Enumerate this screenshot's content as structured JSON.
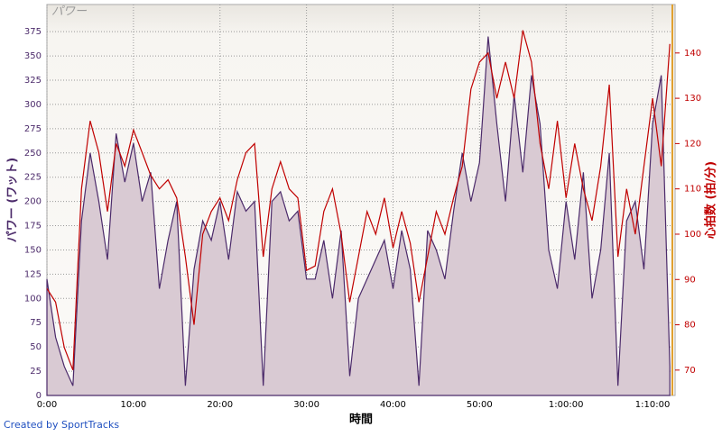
{
  "chart_data": {
    "type": "line",
    "title": "パワー",
    "xlabel": "時間",
    "ylabel": "パワー (ワット)",
    "y2label": "心拍数 (拍/分)",
    "credit": "Created by SportTracks",
    "x": [
      0,
      1,
      2,
      3,
      4,
      5,
      6,
      7,
      8,
      9,
      10,
      11,
      12,
      13,
      14,
      15,
      16,
      17,
      18,
      19,
      20,
      21,
      22,
      23,
      24,
      25,
      26,
      27,
      28,
      29,
      30,
      31,
      32,
      33,
      34,
      35,
      36,
      37,
      38,
      39,
      40,
      41,
      42,
      43,
      44,
      45,
      46,
      47,
      48,
      49,
      50,
      51,
      52,
      53,
      54,
      55,
      56,
      57,
      58,
      59,
      60,
      61,
      62,
      63,
      64,
      65,
      66,
      67,
      68,
      69,
      70,
      71,
      72
    ],
    "series": [
      {
        "name": "パワー",
        "color": "#4b2a6a",
        "fill": "#d9cad3",
        "area": true,
        "values": [
          120,
          60,
          30,
          10,
          180,
          250,
          200,
          140,
          270,
          220,
          260,
          200,
          230,
          110,
          160,
          200,
          10,
          130,
          180,
          160,
          200,
          140,
          210,
          190,
          200,
          10,
          200,
          210,
          180,
          190,
          120,
          120,
          160,
          100,
          170,
          20,
          100,
          120,
          140,
          160,
          110,
          170,
          130,
          10,
          170,
          150,
          120,
          190,
          250,
          200,
          240,
          370,
          280,
          200,
          310,
          230,
          330,
          280,
          150,
          110,
          200,
          140,
          230,
          100,
          150,
          250,
          10,
          180,
          200,
          130,
          280,
          330,
          30
        ]
      },
      {
        "name": "心拍数",
        "color": "#c00000",
        "axis": "y2",
        "values": [
          88,
          85,
          75,
          70,
          110,
          125,
          118,
          105,
          120,
          115,
          123,
          118,
          113,
          110,
          112,
          108,
          95,
          80,
          100,
          105,
          108,
          103,
          112,
          118,
          120,
          95,
          110,
          116,
          110,
          108,
          92,
          93,
          105,
          110,
          100,
          85,
          95,
          105,
          100,
          108,
          97,
          105,
          98,
          85,
          95,
          105,
          100,
          108,
          115,
          132,
          138,
          140,
          130,
          138,
          130,
          145,
          138,
          120,
          110,
          125,
          108,
          120,
          110,
          103,
          115,
          133,
          95,
          110,
          100,
          115,
          130,
          115,
          142
        ]
      }
    ],
    "xlim": [
      0,
      72.6
    ],
    "xticks": [
      {
        "value": 0,
        "label": "0:00"
      },
      {
        "value": 10,
        "label": "10:00"
      },
      {
        "value": 20,
        "label": "20:00"
      },
      {
        "value": 30,
        "label": "30:00"
      },
      {
        "value": 40,
        "label": "40:00"
      },
      {
        "value": 50,
        "label": "50:00"
      },
      {
        "value": 60,
        "label": "1:00:00"
      },
      {
        "value": 70,
        "label": "1:10:00"
      }
    ],
    "ylim": [
      0,
      403
    ],
    "yticks": [
      0,
      25,
      50,
      75,
      100,
      125,
      150,
      175,
      200,
      225,
      250,
      275,
      300,
      325,
      350,
      375
    ],
    "y2lim": [
      64.4,
      150.7
    ],
    "y2ticks": [
      70,
      80,
      90,
      100,
      110,
      120,
      130,
      140
    ],
    "grid": true
  }
}
